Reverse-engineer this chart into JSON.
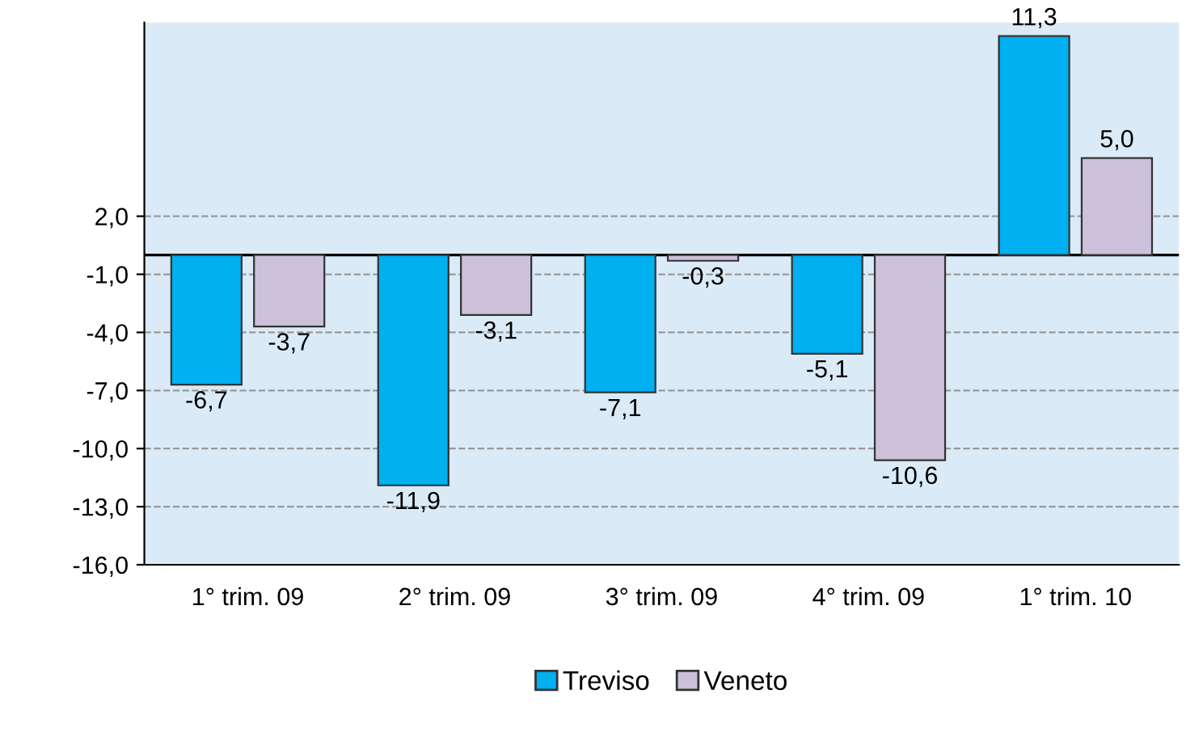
{
  "chart_data": {
    "type": "bar",
    "categories": [
      "1° trim. 09",
      "2° trim. 09",
      "3° trim. 09",
      "4° trim. 09",
      "1° trim. 10"
    ],
    "series": [
      {
        "name": "Treviso",
        "color": "#00b0f0",
        "values": [
          -6.7,
          -11.9,
          -7.1,
          -5.1,
          11.3
        ],
        "value_labels": [
          "-6,7",
          "-11,9",
          "-7,1",
          "-5,1",
          "11,3"
        ]
      },
      {
        "name": "Veneto",
        "color": "#ccc0da",
        "values": [
          -3.7,
          -3.1,
          -0.3,
          -10.6,
          5.0
        ],
        "value_labels": [
          "-3,7",
          "-3,1",
          "-0,3",
          "-10,6",
          "5,0"
        ]
      }
    ],
    "ylim": [
      -16,
      12
    ],
    "yticks": [
      {
        "value": -16,
        "label": "-16,0"
      },
      {
        "value": -13,
        "label": "-13,0"
      },
      {
        "value": -10,
        "label": "-10,0"
      },
      {
        "value": -7,
        "label": "-7,0"
      },
      {
        "value": -4,
        "label": "-4,0"
      },
      {
        "value": -1,
        "label": "-1,0"
      },
      {
        "value": 2,
        "label": "2,0"
      }
    ],
    "ref_lines": [
      {
        "axis": "y",
        "value": 0,
        "color": "#000000"
      }
    ],
    "grid": "y",
    "legend": "bottom"
  }
}
